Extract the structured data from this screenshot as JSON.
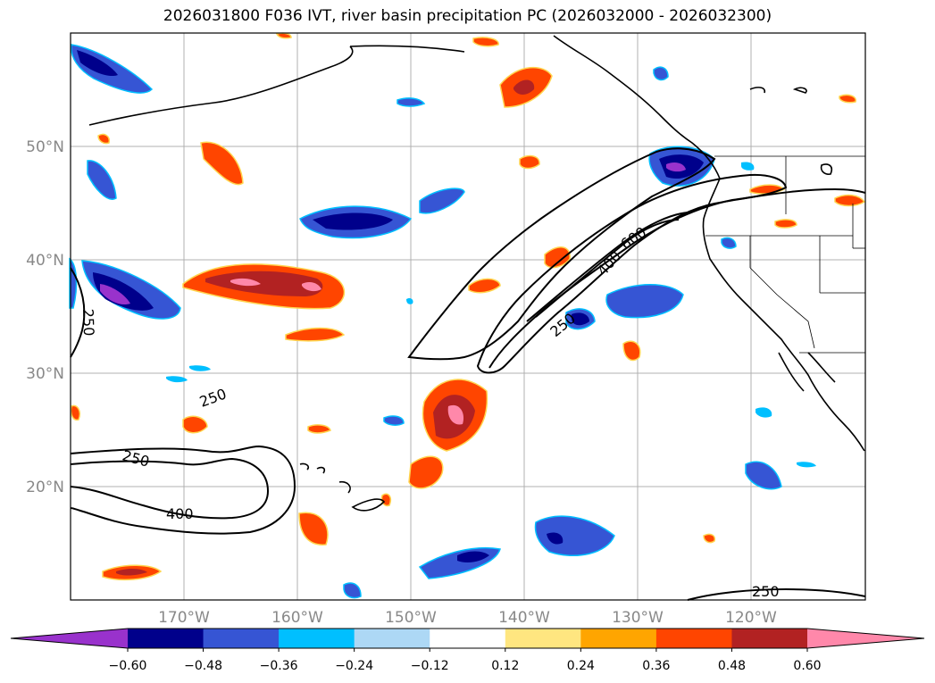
{
  "title": "2026031800 F036 IVT, river basin precipitation PC (2026032000 - 2026032300)",
  "map": {
    "lat_range": [
      10,
      60
    ],
    "lon_range": [
      -180,
      -110
    ],
    "lat_labels": [
      "20°N",
      "30°N",
      "40°N",
      "50°N"
    ],
    "lon_labels": [
      "170°W",
      "160°W",
      "150°W",
      "140°W",
      "130°W",
      "120°W"
    ],
    "ivt_contour_labels": [
      "250",
      "250",
      "400",
      "250",
      "400",
      "250",
      "250",
      "400",
      "600",
      "250"
    ]
  },
  "colorbar": {
    "ticks": [
      "−0.60",
      "−0.48",
      "−0.36",
      "−0.24",
      "−0.12",
      "0.12",
      "0.24",
      "0.36",
      "0.48",
      "0.60"
    ],
    "colors": [
      "#9932cc",
      "#00008b",
      "#3655d4",
      "#00bfff",
      "#add8f5",
      "#ffffff",
      "#ffe680",
      "#ffa500",
      "#ff4500",
      "#b22222",
      "#ff88aa"
    ]
  },
  "colors": {
    "grid": "#b0b0b0",
    "coast": "#000000",
    "contour": "#000000"
  }
}
